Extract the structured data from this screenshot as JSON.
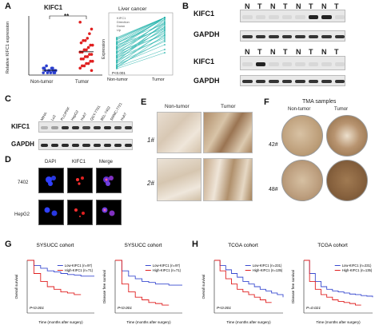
{
  "panels": {
    "A": "A",
    "B": "B",
    "C": "C",
    "D": "D",
    "E": "E",
    "F": "F",
    "G": "G",
    "H": "H"
  },
  "panelA": {
    "title": "KIFC1",
    "ylabel": "Relative KIFC1 expression",
    "significance": "**",
    "categories": [
      "Non-tumor",
      "Tumor"
    ],
    "line_title": "Liver cancer",
    "line_ylabel": "Expression",
    "line_legend": [
      "KIFC1",
      "Direction",
      "Down",
      "Up"
    ],
    "line_pvalue": "P<0.001",
    "line_xlabels": [
      "Non-tumor",
      "Tumor"
    ]
  },
  "panelB": {
    "lanes": [
      "N",
      "T",
      "N",
      "T",
      "N",
      "T",
      "N",
      "T"
    ],
    "row1": "KIFC1",
    "row2": "GAPDH",
    "row3": "KIFC1",
    "row4": "GAPDH",
    "set1_kifc1": [
      0,
      0,
      0,
      0,
      0,
      1,
      1,
      0
    ],
    "set2_kifc1": [
      0,
      1,
      0,
      0,
      0,
      0,
      0,
      0
    ]
  },
  "panelC": {
    "lanes": [
      "MIHA",
      "Lo2",
      "PLC/PRF",
      "HepG2",
      "Huh7",
      "QGY-7701",
      "BEL-7402",
      "SMMC-7721",
      "Huh7"
    ],
    "row1": "KIFC1",
    "row2": "GAPDH",
    "kifc1_levels": [
      0.2,
      0.3,
      0.9,
      0.9,
      0.8,
      0.9,
      0.95,
      0.8,
      0.9
    ]
  },
  "panelD": {
    "cols": [
      "DAPI",
      "KIFC1",
      "Merge"
    ],
    "rows": [
      "7402",
      "HepG2"
    ]
  },
  "panelE": {
    "cols": [
      "Non-tumor",
      "Tumor"
    ],
    "rows": [
      "1#",
      "2#"
    ]
  },
  "panelF": {
    "title": "TMA samples",
    "cols": [
      "Non-tumor",
      "Tumor"
    ],
    "rows": [
      "42#",
      "48#"
    ]
  },
  "colors": {
    "low": "#3a4bd0",
    "high": "#e02020",
    "scatter_nt": "#2b3fcf",
    "scatter_t": "#e02020",
    "line_teal": "#20b2aa"
  },
  "chart_data": [
    {
      "type": "scatter",
      "title": "KIFC1",
      "ylabel": "Relative KIFC1 expression",
      "categories": [
        "Non-tumor",
        "Tumor"
      ],
      "series": [
        {
          "name": "Non-tumor",
          "values": [
            0.1,
            0.2,
            0.3,
            0.1,
            0.2,
            0.4,
            0.3,
            0.2,
            0.1,
            0.3,
            0.2,
            0.1,
            0.2,
            0.3,
            0.1,
            0.2
          ]
        },
        {
          "name": "Tumor",
          "values": [
            2.3,
            2.0,
            1.8,
            1.6,
            1.5,
            1.5,
            1.4,
            1.3,
            1.3,
            1.2,
            1.1,
            1.1,
            1.0,
            1.0,
            0.9,
            0.9,
            0.8,
            0.8,
            0.7,
            0.7,
            0.6,
            0.6,
            0.5,
            0.5,
            0.4,
            0.4,
            0.3,
            0.2
          ]
        }
      ]
    },
    {
      "type": "line",
      "title": "SYSUCC cohort",
      "ylabel": "Overall survival",
      "xlabel": "Time (months after surgery)",
      "pvalue": "P<0.001",
      "series": [
        {
          "name": "Low-KIFC1 (n=97)",
          "x": [
            0,
            10,
            20,
            30,
            40,
            50,
            60,
            70,
            80,
            90,
            100
          ],
          "y": [
            1.0,
            0.9,
            0.85,
            0.8,
            0.78,
            0.75,
            0.73,
            0.72,
            0.7,
            0.7,
            0.7
          ]
        },
        {
          "name": "High-KIFC1 (n=71)",
          "x": [
            0,
            10,
            20,
            30,
            40,
            50,
            60,
            70,
            80
          ],
          "y": [
            1.0,
            0.75,
            0.6,
            0.5,
            0.45,
            0.4,
            0.38,
            0.35,
            0.35
          ]
        }
      ],
      "ylim": [
        0,
        1
      ]
    },
    {
      "type": "line",
      "title": "SYSUCC cohort",
      "ylabel": "Disease free survival",
      "xlabel": "Time (months after surgery)",
      "pvalue": "P<0.001",
      "series": [
        {
          "name": "Low-KIFC1 (n=97)",
          "x": [
            0,
            10,
            20,
            30,
            40,
            50,
            60,
            70,
            80,
            90,
            100
          ],
          "y": [
            1.0,
            0.8,
            0.7,
            0.65,
            0.6,
            0.58,
            0.55,
            0.55,
            0.53,
            0.53,
            0.53
          ]
        },
        {
          "name": "High-KIFC1 (n=71)",
          "x": [
            0,
            10,
            20,
            30,
            40,
            50,
            60,
            70,
            80
          ],
          "y": [
            1.0,
            0.55,
            0.4,
            0.3,
            0.25,
            0.2,
            0.18,
            0.15,
            0.15
          ]
        }
      ],
      "ylim": [
        0,
        1
      ]
    },
    {
      "type": "line",
      "title": "TCGA cohort",
      "ylabel": "Overall survival",
      "xlabel": "Time (months after surgery)",
      "pvalue": "P<0.001",
      "series": [
        {
          "name": "Low-KIFC1 (n=231)",
          "x": [
            0,
            10,
            20,
            30,
            40,
            50,
            60,
            70,
            80,
            90,
            100,
            110,
            120
          ],
          "y": [
            1.0,
            0.9,
            0.82,
            0.75,
            0.68,
            0.6,
            0.55,
            0.5,
            0.45,
            0.42,
            0.38,
            0.35,
            0.3
          ]
        },
        {
          "name": "High-KIFC1 (n=135)",
          "x": [
            0,
            10,
            20,
            30,
            40,
            50,
            60,
            70,
            80,
            90,
            100
          ],
          "y": [
            1.0,
            0.8,
            0.65,
            0.55,
            0.45,
            0.4,
            0.35,
            0.3,
            0.25,
            0.2,
            0.2
          ]
        }
      ],
      "ylim": [
        0,
        1
      ]
    },
    {
      "type": "line",
      "title": "TCGA cohort",
      "ylabel": "Disease free survival",
      "xlabel": "Time (months after surgery)",
      "pvalue": "P=0.021",
      "series": [
        {
          "name": "Low-KIFC1 (n=231)",
          "x": [
            0,
            10,
            20,
            30,
            40,
            50,
            60,
            70,
            80,
            90,
            100,
            110,
            120
          ],
          "y": [
            1.0,
            0.75,
            0.6,
            0.5,
            0.45,
            0.42,
            0.4,
            0.38,
            0.36,
            0.35,
            0.33,
            0.32,
            0.3
          ]
        },
        {
          "name": "High-KIFC1 (n=135)",
          "x": [
            0,
            10,
            20,
            30,
            40,
            50,
            60,
            70,
            80,
            90,
            100
          ],
          "y": [
            1.0,
            0.6,
            0.45,
            0.35,
            0.3,
            0.25,
            0.22,
            0.2,
            0.18,
            0.15,
            0.15
          ]
        }
      ],
      "ylim": [
        0,
        1
      ]
    }
  ]
}
